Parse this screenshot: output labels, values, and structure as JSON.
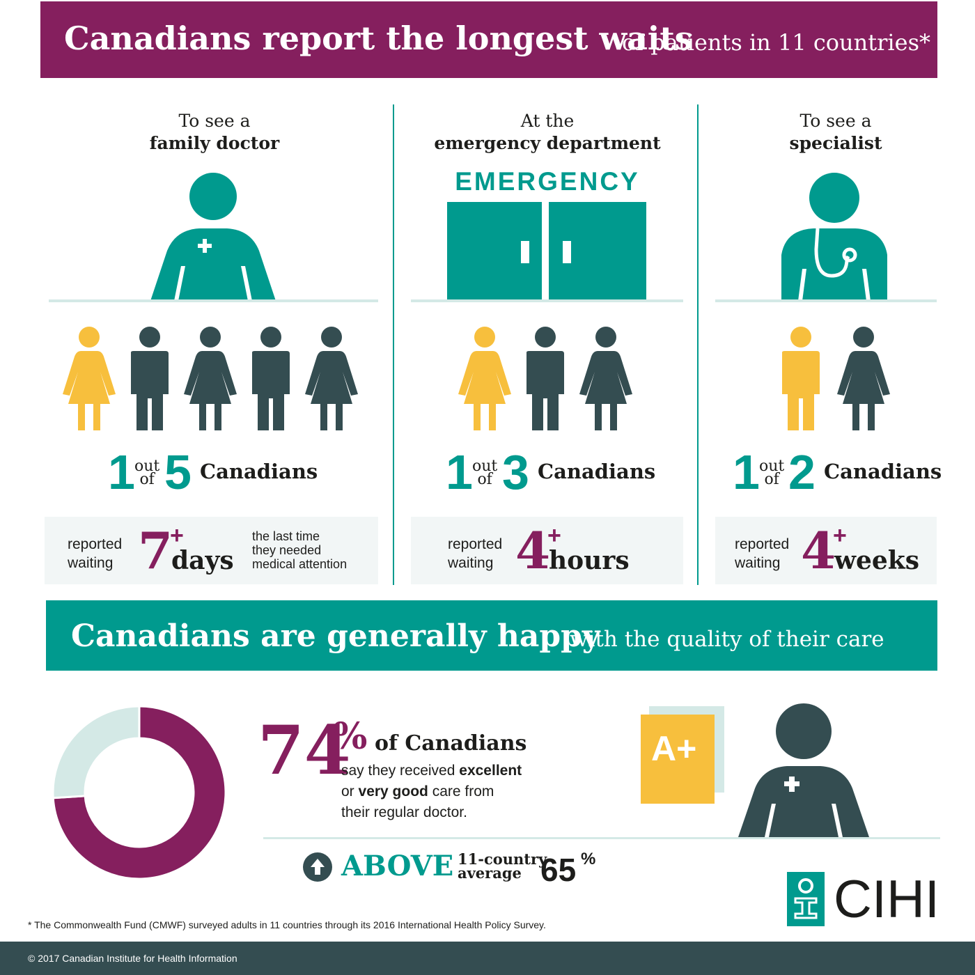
{
  "header": {
    "title_bold": "Canadians report the longest waits",
    "title_rest": "of patients in 11 countries*"
  },
  "columns": [
    {
      "title_line1": "To see a",
      "title_line2": "family doctor",
      "ratio_num": "1",
      "ratio_mid_line1": "out",
      "ratio_mid_line2": "of",
      "ratio_den": "5",
      "ratio_label": "Canadians",
      "reported_line1": "reported",
      "reported_line2": "waiting",
      "wait_value": "7",
      "wait_plus": "+",
      "wait_unit": "days",
      "note_line1": "the last time",
      "note_line2": "they needed",
      "note_line3": "medical attention"
    },
    {
      "title_line1": "At the",
      "title_line2": "emergency department",
      "sign_text": "EMERGENCY",
      "ratio_num": "1",
      "ratio_mid_line1": "out",
      "ratio_mid_line2": "of",
      "ratio_den": "3",
      "ratio_label": "Canadians",
      "reported_line1": "reported",
      "reported_line2": "waiting",
      "wait_value": "4",
      "wait_plus": "+",
      "wait_unit": "hours"
    },
    {
      "title_line1": "To see a",
      "title_line2": "specialist",
      "ratio_num": "1",
      "ratio_mid_line1": "out",
      "ratio_mid_line2": "of",
      "ratio_den": "2",
      "ratio_label": "Canadians",
      "reported_line1": "reported",
      "reported_line2": "waiting",
      "wait_value": "4",
      "wait_plus": "+",
      "wait_unit": "weeks"
    }
  ],
  "section2": {
    "title_bold": "Canadians are generally happy",
    "title_rest": "with the quality of their care"
  },
  "satisfaction": {
    "percent_value": "74",
    "percent_sign": "%",
    "percent_label": "of Canadians",
    "desc_line1_a": "say they received ",
    "desc_line1_b": "excellent",
    "desc_line2_a": "or ",
    "desc_line2_b": "very good",
    "desc_line2_c": " care from",
    "desc_line3": "their regular doctor.",
    "grade": "A+",
    "above_label": "ABOVE",
    "avg_line1": "11-country",
    "avg_line2": "average",
    "avg_value": "65",
    "avg_sign": "%"
  },
  "chart_data": {
    "type": "pie",
    "style": "donut",
    "values": [
      74,
      26
    ],
    "colors": [
      "#851f5e",
      "#d4e9e6"
    ]
  },
  "colors": {
    "plum": "#851f5e",
    "teal": "#009a8e",
    "slate": "#344d51",
    "yellow": "#f7bf3d",
    "pale_teal": "#d4e9e6"
  },
  "icons": {
    "man": "man-icon",
    "woman": "woman-icon",
    "doctor": "doctor-icon",
    "doors": "emergency-doors-icon",
    "arrow": "arrow-up-icon",
    "logo": "cihi-logo"
  },
  "logo_text": "CIHI",
  "footnote": "* The Commonwealth Fund (CMWF) surveyed adults in 11 countries through its 2016 International Health Policy Survey.",
  "footer": "© 2017 Canadian Institute for Health Information"
}
